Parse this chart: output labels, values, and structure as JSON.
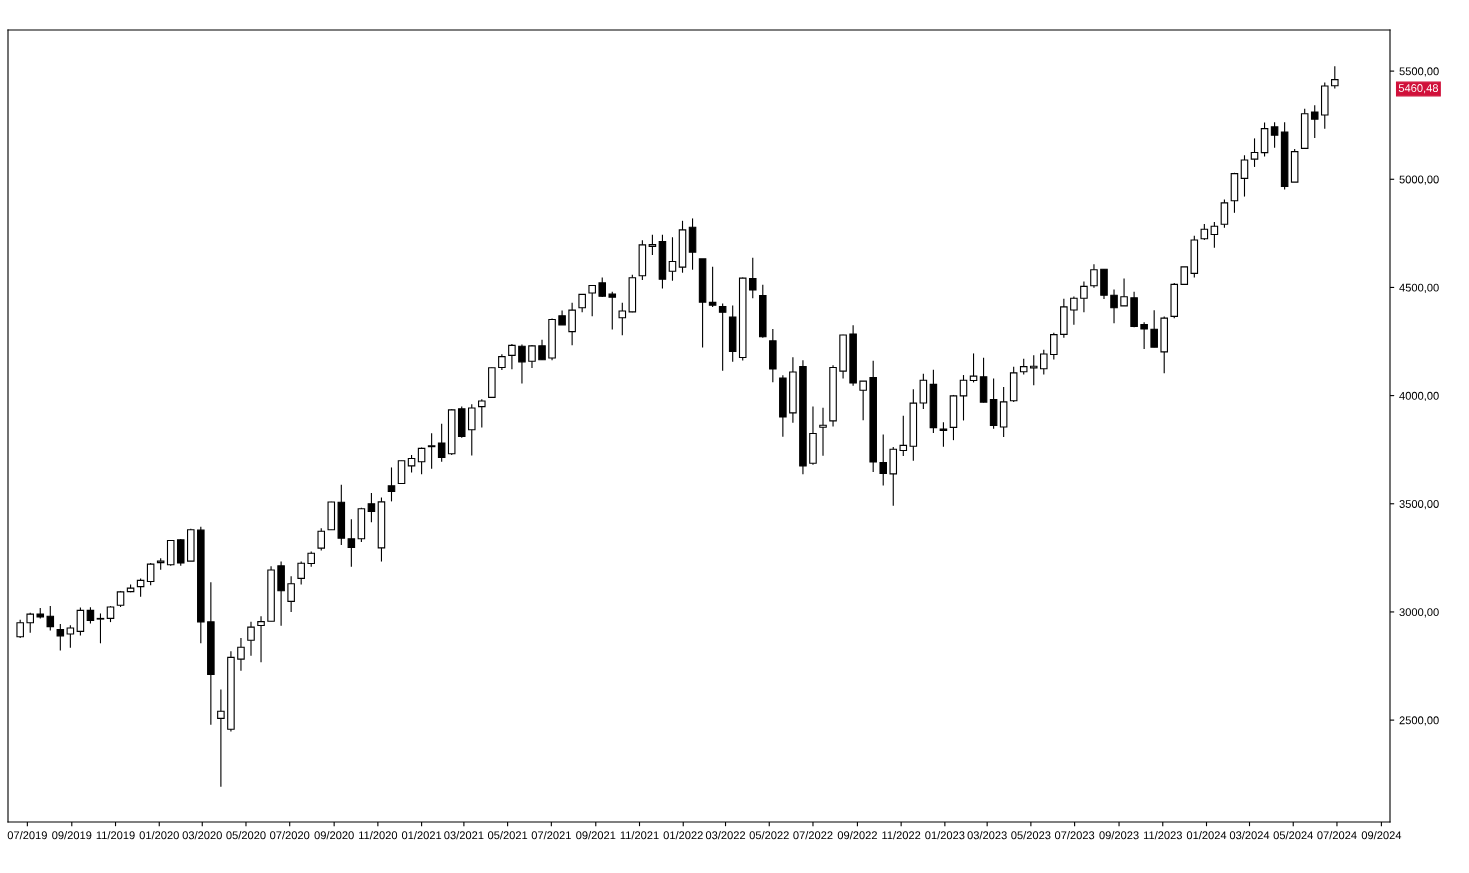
{
  "chart_data": {
    "type": "candlestick",
    "x": [
      "2019-06-21",
      "2019-07-05",
      "2019-07-19",
      "2019-08-02",
      "2019-08-16",
      "2019-08-30",
      "2019-09-13",
      "2019-09-27",
      "2019-10-11",
      "2019-10-25",
      "2019-11-08",
      "2019-11-22",
      "2019-12-06",
      "2019-12-20",
      "2020-01-03",
      "2020-01-17",
      "2020-01-31",
      "2020-02-14",
      "2020-02-28",
      "2020-03-13",
      "2020-03-27",
      "2020-04-10",
      "2020-04-24",
      "2020-05-08",
      "2020-05-22",
      "2020-06-05",
      "2020-06-19",
      "2020-07-03",
      "2020-07-17",
      "2020-07-31",
      "2020-08-14",
      "2020-08-28",
      "2020-09-11",
      "2020-09-25",
      "2020-10-09",
      "2020-10-23",
      "2020-11-06",
      "2020-11-20",
      "2020-12-04",
      "2020-12-18",
      "2021-01-01",
      "2021-01-15",
      "2021-01-29",
      "2021-02-12",
      "2021-02-26",
      "2021-03-12",
      "2021-03-26",
      "2021-04-09",
      "2021-04-23",
      "2021-05-07",
      "2021-05-21",
      "2021-06-04",
      "2021-06-18",
      "2021-07-02",
      "2021-07-16",
      "2021-07-30",
      "2021-08-13",
      "2021-08-27",
      "2021-09-10",
      "2021-09-24",
      "2021-10-08",
      "2021-10-22",
      "2021-11-05",
      "2021-11-19",
      "2021-12-03",
      "2021-12-17",
      "2021-12-31",
      "2022-01-14",
      "2022-01-28",
      "2022-02-11",
      "2022-02-25",
      "2022-03-11",
      "2022-03-25",
      "2022-04-08",
      "2022-04-22",
      "2022-05-06",
      "2022-05-20",
      "2022-06-03",
      "2022-06-17",
      "2022-07-01",
      "2022-07-15",
      "2022-07-29",
      "2022-08-12",
      "2022-08-26",
      "2022-09-09",
      "2022-09-23",
      "2022-10-07",
      "2022-10-21",
      "2022-11-04",
      "2022-11-18",
      "2022-12-02",
      "2022-12-16",
      "2022-12-30",
      "2023-01-13",
      "2023-01-27",
      "2023-02-10",
      "2023-02-24",
      "2023-03-10",
      "2023-03-24",
      "2023-04-07",
      "2023-04-21",
      "2023-05-05",
      "2023-05-19",
      "2023-06-02",
      "2023-06-16",
      "2023-06-30",
      "2023-07-14",
      "2023-07-28",
      "2023-08-11",
      "2023-08-25",
      "2023-09-08",
      "2023-09-22",
      "2023-10-06",
      "2023-10-20",
      "2023-11-03",
      "2023-11-17",
      "2023-12-01",
      "2023-12-15",
      "2023-12-29",
      "2024-01-12",
      "2024-01-26",
      "2024-02-09",
      "2024-02-23",
      "2024-03-08",
      "2024-03-22",
      "2024-04-05",
      "2024-04-19",
      "2024-05-03",
      "2024-05-17",
      "2024-05-31",
      "2024-06-14",
      "2024-06-28"
    ],
    "ohlc": [
      [
        2885,
        2964,
        2880,
        2950
      ],
      [
        2950,
        2996,
        2904,
        2990
      ],
      [
        2990,
        3018,
        2970,
        2977
      ],
      [
        2980,
        3028,
        2914,
        2932
      ],
      [
        2918,
        2944,
        2822,
        2889
      ],
      [
        2898,
        2939,
        2834,
        2926
      ],
      [
        2910,
        3021,
        2891,
        3007
      ],
      [
        3007,
        3022,
        2946,
        2961
      ],
      [
        2967,
        2993,
        2855,
        2970
      ],
      [
        2970,
        3027,
        2953,
        3023
      ],
      [
        3031,
        3097,
        3023,
        3093
      ],
      [
        3094,
        3127,
        3091,
        3110
      ],
      [
        3117,
        3154,
        3070,
        3146
      ],
      [
        3141,
        3226,
        3123,
        3221
      ],
      [
        3228,
        3248,
        3195,
        3235
      ],
      [
        3218,
        3330,
        3214,
        3330
      ],
      [
        3333,
        3337,
        3214,
        3226
      ],
      [
        3235,
        3385,
        3235,
        3380
      ],
      [
        3378,
        3394,
        2855,
        2954
      ],
      [
        2954,
        3137,
        2478,
        2711
      ],
      [
        2508,
        2641,
        2192,
        2541
      ],
      [
        2458,
        2818,
        2447,
        2790
      ],
      [
        2782,
        2880,
        2728,
        2837
      ],
      [
        2869,
        2955,
        2798,
        2930
      ],
      [
        2937,
        2980,
        2767,
        2955
      ],
      [
        2957,
        3211,
        2957,
        3194
      ],
      [
        3213,
        3233,
        2936,
        3098
      ],
      [
        3049,
        3165,
        3000,
        3130
      ],
      [
        3155,
        3233,
        3127,
        3225
      ],
      [
        3224,
        3279,
        3209,
        3271
      ],
      [
        3295,
        3387,
        3284,
        3373
      ],
      [
        3380,
        3509,
        3379,
        3508
      ],
      [
        3507,
        3588,
        3310,
        3341
      ],
      [
        3338,
        3429,
        3209,
        3298
      ],
      [
        3338,
        3482,
        3323,
        3477
      ],
      [
        3500,
        3550,
        3415,
        3465
      ],
      [
        3296,
        3529,
        3233,
        3509
      ],
      [
        3583,
        3668,
        3511,
        3557
      ],
      [
        3594,
        3699,
        3594,
        3699
      ],
      [
        3675,
        3725,
        3645,
        3709
      ],
      [
        3694,
        3760,
        3636,
        3756
      ],
      [
        3764,
        3826,
        3662,
        3768
      ],
      [
        3781,
        3870,
        3694,
        3714
      ],
      [
        3731,
        3937,
        3725,
        3934
      ],
      [
        3939,
        3950,
        3805,
        3811
      ],
      [
        3842,
        3960,
        3723,
        3943
      ],
      [
        3949,
        3983,
        3853,
        3975
      ],
      [
        3992,
        4130,
        3992,
        4129
      ],
      [
        4130,
        4191,
        4118,
        4180
      ],
      [
        4186,
        4238,
        4122,
        4232
      ],
      [
        4228,
        4236,
        4056,
        4156
      ],
      [
        4159,
        4234,
        4128,
        4230
      ],
      [
        4230,
        4258,
        4165,
        4166
      ],
      [
        4174,
        4356,
        4164,
        4352
      ],
      [
        4369,
        4393,
        4327,
        4327
      ],
      [
        4296,
        4429,
        4233,
        4395
      ],
      [
        4406,
        4468,
        4385,
        4468
      ],
      [
        4474,
        4510,
        4367,
        4509
      ],
      [
        4521,
        4546,
        4456,
        4459
      ],
      [
        4469,
        4480,
        4305,
        4455
      ],
      [
        4360,
        4429,
        4279,
        4391
      ],
      [
        4387,
        4559,
        4385,
        4545
      ],
      [
        4554,
        4718,
        4534,
        4697
      ],
      [
        4690,
        4743,
        4650,
        4698
      ],
      [
        4712,
        4743,
        4495,
        4538
      ],
      [
        4575,
        4732,
        4531,
        4620
      ],
      [
        4594,
        4808,
        4568,
        4766
      ],
      [
        4778,
        4819,
        4582,
        4663
      ],
      [
        4632,
        4632,
        4222,
        4432
      ],
      [
        4431,
        4596,
        4409,
        4418
      ],
      [
        4412,
        4426,
        4115,
        4385
      ],
      [
        4363,
        4416,
        4157,
        4204
      ],
      [
        4176,
        4546,
        4162,
        4543
      ],
      [
        4541,
        4637,
        4450,
        4488
      ],
      [
        4462,
        4513,
        4267,
        4272
      ],
      [
        4253,
        4308,
        4062,
        4123
      ],
      [
        4081,
        4094,
        3810,
        3901
      ],
      [
        3920,
        4177,
        3875,
        4109
      ],
      [
        4134,
        4164,
        3637,
        3675
      ],
      [
        3687,
        3950,
        3680,
        3825
      ],
      [
        3854,
        3944,
        3722,
        3863
      ],
      [
        3883,
        4140,
        3857,
        4130
      ],
      [
        4113,
        4281,
        4079,
        4280
      ],
      [
        4285,
        4325,
        4046,
        4058
      ],
      [
        4025,
        4068,
        3886,
        4067
      ],
      [
        4084,
        4161,
        3647,
        3693
      ],
      [
        3691,
        3820,
        3584,
        3640
      ],
      [
        3638,
        3763,
        3491,
        3752
      ],
      [
        3746,
        3907,
        3721,
        3770
      ],
      [
        3766,
        4029,
        3699,
        3965
      ],
      [
        3966,
        4101,
        3938,
        4071
      ],
      [
        4052,
        4119,
        3827,
        3852
      ],
      [
        3845,
        3877,
        3764,
        3839
      ],
      [
        3853,
        4003,
        3794,
        3999
      ],
      [
        3999,
        4095,
        3885,
        4071
      ],
      [
        4070,
        4195,
        4061,
        4090
      ],
      [
        4087,
        4175,
        3968,
        3970
      ],
      [
        3982,
        4079,
        3847,
        3862
      ],
      [
        3855,
        4040,
        3809,
        3971
      ],
      [
        3976,
        4133,
        3970,
        4105
      ],
      [
        4110,
        4170,
        4098,
        4134
      ],
      [
        4128,
        4186,
        4048,
        4136
      ],
      [
        4124,
        4212,
        4098,
        4192
      ],
      [
        4190,
        4290,
        4167,
        4282
      ],
      [
        4283,
        4448,
        4267,
        4410
      ],
      [
        4396,
        4458,
        4328,
        4450
      ],
      [
        4450,
        4528,
        4385,
        4505
      ],
      [
        4508,
        4607,
        4498,
        4582
      ],
      [
        4584,
        4584,
        4447,
        4464
      ],
      [
        4464,
        4490,
        4335,
        4406
      ],
      [
        4415,
        4541,
        4415,
        4457
      ],
      [
        4452,
        4480,
        4316,
        4320
      ],
      [
        4329,
        4339,
        4216,
        4308
      ],
      [
        4307,
        4394,
        4224,
        4224
      ],
      [
        4202,
        4366,
        4103,
        4358
      ],
      [
        4366,
        4520,
        4357,
        4514
      ],
      [
        4514,
        4595,
        4511,
        4595
      ],
      [
        4565,
        4739,
        4546,
        4719
      ],
      [
        4725,
        4793,
        4719,
        4769
      ],
      [
        4745,
        4802,
        4683,
        4783
      ],
      [
        4792,
        4907,
        4776,
        4891
      ],
      [
        4901,
        5030,
        4845,
        5026
      ],
      [
        5004,
        5111,
        4920,
        5089
      ],
      [
        5093,
        5189,
        5057,
        5124
      ],
      [
        5123,
        5262,
        5105,
        5234
      ],
      [
        5242,
        5264,
        5146,
        5204
      ],
      [
        5218,
        5263,
        4953,
        4967
      ],
      [
        4987,
        5140,
        4987,
        5128
      ],
      [
        5143,
        5326,
        5140,
        5303
      ],
      [
        5311,
        5342,
        5191,
        5278
      ],
      [
        5297,
        5447,
        5234,
        5431
      ],
      [
        5432,
        5523,
        5420,
        5460.48
      ]
    ],
    "xlim": [
      "2019-06-04",
      "2024-09-13"
    ],
    "xticks": [
      {
        "value": "2019-07-01",
        "label": "07/2019"
      },
      {
        "value": "2019-09-01",
        "label": "09/2019"
      },
      {
        "value": "2019-11-01",
        "label": "11/2019"
      },
      {
        "value": "2020-01-01",
        "label": "01/2020"
      },
      {
        "value": "2020-03-01",
        "label": "03/2020"
      },
      {
        "value": "2020-05-01",
        "label": "05/2020"
      },
      {
        "value": "2020-07-01",
        "label": "07/2020"
      },
      {
        "value": "2020-09-01",
        "label": "09/2020"
      },
      {
        "value": "2020-11-01",
        "label": "11/2020"
      },
      {
        "value": "2021-01-01",
        "label": "01/2021"
      },
      {
        "value": "2021-03-01",
        "label": "03/2021"
      },
      {
        "value": "2021-05-01",
        "label": "05/2021"
      },
      {
        "value": "2021-07-01",
        "label": "07/2021"
      },
      {
        "value": "2021-09-01",
        "label": "09/2021"
      },
      {
        "value": "2021-11-01",
        "label": "11/2021"
      },
      {
        "value": "2022-01-01",
        "label": "01/2022"
      },
      {
        "value": "2022-03-01",
        "label": "03/2022"
      },
      {
        "value": "2022-05-01",
        "label": "05/2022"
      },
      {
        "value": "2022-07-01",
        "label": "07/2022"
      },
      {
        "value": "2022-09-01",
        "label": "09/2022"
      },
      {
        "value": "2022-11-01",
        "label": "11/2022"
      },
      {
        "value": "2023-01-01",
        "label": "01/2023"
      },
      {
        "value": "2023-03-01",
        "label": "03/2023"
      },
      {
        "value": "2023-05-01",
        "label": "05/2023"
      },
      {
        "value": "2023-07-01",
        "label": "07/2023"
      },
      {
        "value": "2023-09-01",
        "label": "09/2023"
      },
      {
        "value": "2023-11-01",
        "label": "11/2023"
      },
      {
        "value": "2024-01-01",
        "label": "01/2024"
      },
      {
        "value": "2024-03-01",
        "label": "03/2024"
      },
      {
        "value": "2024-05-01",
        "label": "05/2024"
      },
      {
        "value": "2024-07-01",
        "label": "07/2024"
      },
      {
        "value": "2024-09-01",
        "label": "09/2024"
      }
    ],
    "ylim": [
      2029,
      5690
    ],
    "yticks": [
      {
        "value": 2500,
        "label": "2500,00"
      },
      {
        "value": 3000,
        "label": "3000,00"
      },
      {
        "value": 3500,
        "label": "3500,00"
      },
      {
        "value": 4000,
        "label": "4000,00"
      },
      {
        "value": 4500,
        "label": "4500,00"
      },
      {
        "value": 5000,
        "label": "5000,00"
      },
      {
        "value": 5500,
        "label": "5500,00"
      }
    ],
    "annotations": [
      "5460,48"
    ],
    "grid": false,
    "legend": false
  }
}
